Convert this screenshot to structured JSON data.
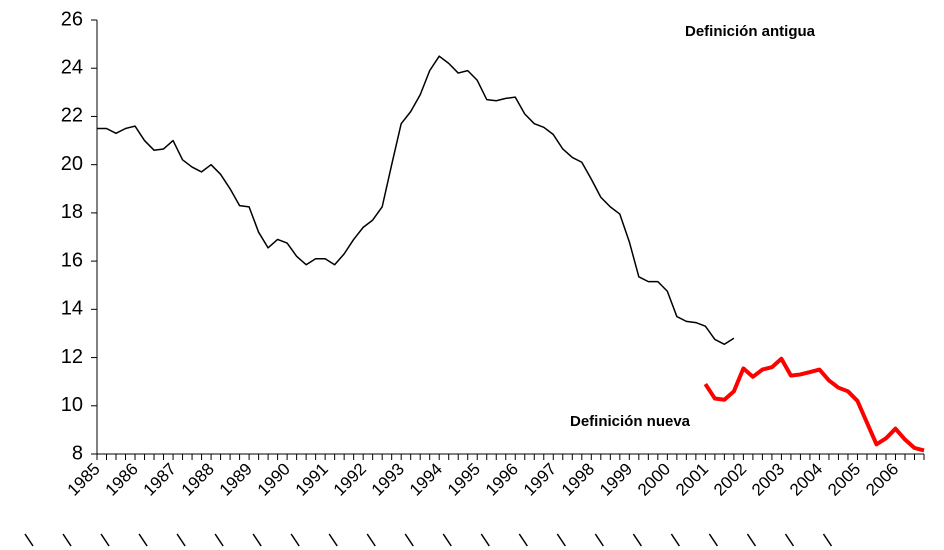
{
  "chart_data": {
    "type": "line",
    "annotations": [
      "Definición antigua",
      "Definición nueva"
    ],
    "categories": [
      "1985",
      null,
      null,
      null,
      "1986",
      null,
      null,
      null,
      "1987",
      null,
      null,
      null,
      "1988",
      null,
      null,
      null,
      "1989",
      null,
      null,
      null,
      "1990",
      null,
      null,
      null,
      "1991",
      null,
      null,
      null,
      "1992",
      null,
      null,
      null,
      "1993",
      null,
      null,
      null,
      "1994",
      null,
      null,
      null,
      "1995",
      null,
      null,
      null,
      "1996",
      null,
      null,
      null,
      "1997",
      null,
      null,
      null,
      "1998",
      null,
      null,
      null,
      "1999",
      null,
      null,
      null,
      "2000",
      null,
      null,
      null,
      "2001",
      null,
      null,
      null,
      "2002",
      null,
      null,
      null,
      "2003",
      null,
      null,
      null,
      "2004",
      null,
      null,
      null,
      "2005",
      null,
      null,
      null,
      "2006",
      null,
      null,
      null
    ],
    "series": [
      {
        "name": "Definición antigua",
        "color": "#000000",
        "width": 1.5,
        "values": [
          21.5,
          21.5,
          21.3,
          21.5,
          21.6,
          21.0,
          20.6,
          20.65,
          21.0,
          20.2,
          19.9,
          19.7,
          20.0,
          19.6,
          19.0,
          18.3,
          18.25,
          17.2,
          16.55,
          16.9,
          16.75,
          16.2,
          15.85,
          16.1,
          16.1,
          15.85,
          16.3,
          16.9,
          17.4,
          17.7,
          18.25,
          20.0,
          21.7,
          22.2,
          22.9,
          23.9,
          24.5,
          24.2,
          23.8,
          23.9,
          23.5,
          22.7,
          22.65,
          22.75,
          22.8,
          22.1,
          21.7,
          21.55,
          21.25,
          20.65,
          20.3,
          20.1,
          19.4,
          18.65,
          18.25,
          17.95,
          16.8,
          15.35,
          15.15,
          15.15,
          14.75,
          13.7,
          13.5,
          13.45,
          13.3,
          12.75,
          12.55,
          12.8,
          null,
          null,
          null,
          null,
          null,
          null,
          null,
          null,
          null,
          null,
          null,
          null,
          null,
          null,
          null,
          null,
          null,
          null,
          null,
          null
        ]
      },
      {
        "name": "Definición nueva",
        "color": "#ff0000",
        "width": 4,
        "values": [
          null,
          null,
          null,
          null,
          null,
          null,
          null,
          null,
          null,
          null,
          null,
          null,
          null,
          null,
          null,
          null,
          null,
          null,
          null,
          null,
          null,
          null,
          null,
          null,
          null,
          null,
          null,
          null,
          null,
          null,
          null,
          null,
          null,
          null,
          null,
          null,
          null,
          null,
          null,
          null,
          null,
          null,
          null,
          null,
          null,
          null,
          null,
          null,
          null,
          null,
          null,
          null,
          null,
          null,
          null,
          null,
          null,
          null,
          null,
          null,
          null,
          null,
          null,
          null,
          10.9,
          10.3,
          10.25,
          10.6,
          11.55,
          11.2,
          11.5,
          11.6,
          11.95,
          11.25,
          11.3,
          11.4,
          11.5,
          11.05,
          10.75,
          10.6,
          10.2,
          9.3,
          8.4,
          8.65,
          9.05,
          8.6,
          8.25,
          8.15
        ]
      }
    ],
    "ylim": [
      8,
      26
    ],
    "yticks": [
      8,
      10,
      12,
      14,
      16,
      18,
      20,
      22,
      24,
      26
    ],
    "grid": false
  }
}
